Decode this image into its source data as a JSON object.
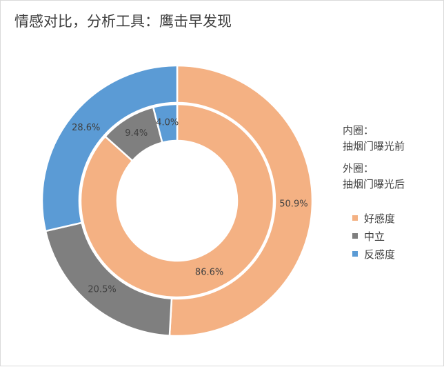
{
  "title": "情感对比，分析工具：鹰击早发现",
  "notes": {
    "inner_head": "内圈：",
    "inner_text": "抽烟门曝光前",
    "outer_head": "外圈：",
    "outer_text": "抽烟门曝光后"
  },
  "chart_data": {
    "type": "pie",
    "subtype": "double-donut",
    "categories": [
      "好感度",
      "中立",
      "反感度"
    ],
    "colors": [
      "#f4b183",
      "#7f7f7f",
      "#5b9bd5"
    ],
    "series": [
      {
        "ring": "inner",
        "values": [
          86.6,
          9.4,
          4.0
        ],
        "labels": [
          "86.6%",
          "9.4%",
          "4.0%"
        ]
      },
      {
        "ring": "outer",
        "values": [
          50.9,
          20.5,
          28.6
        ],
        "labels": [
          "50.9%",
          "20.5%",
          "28.6%"
        ]
      }
    ],
    "legend_position": "right"
  }
}
